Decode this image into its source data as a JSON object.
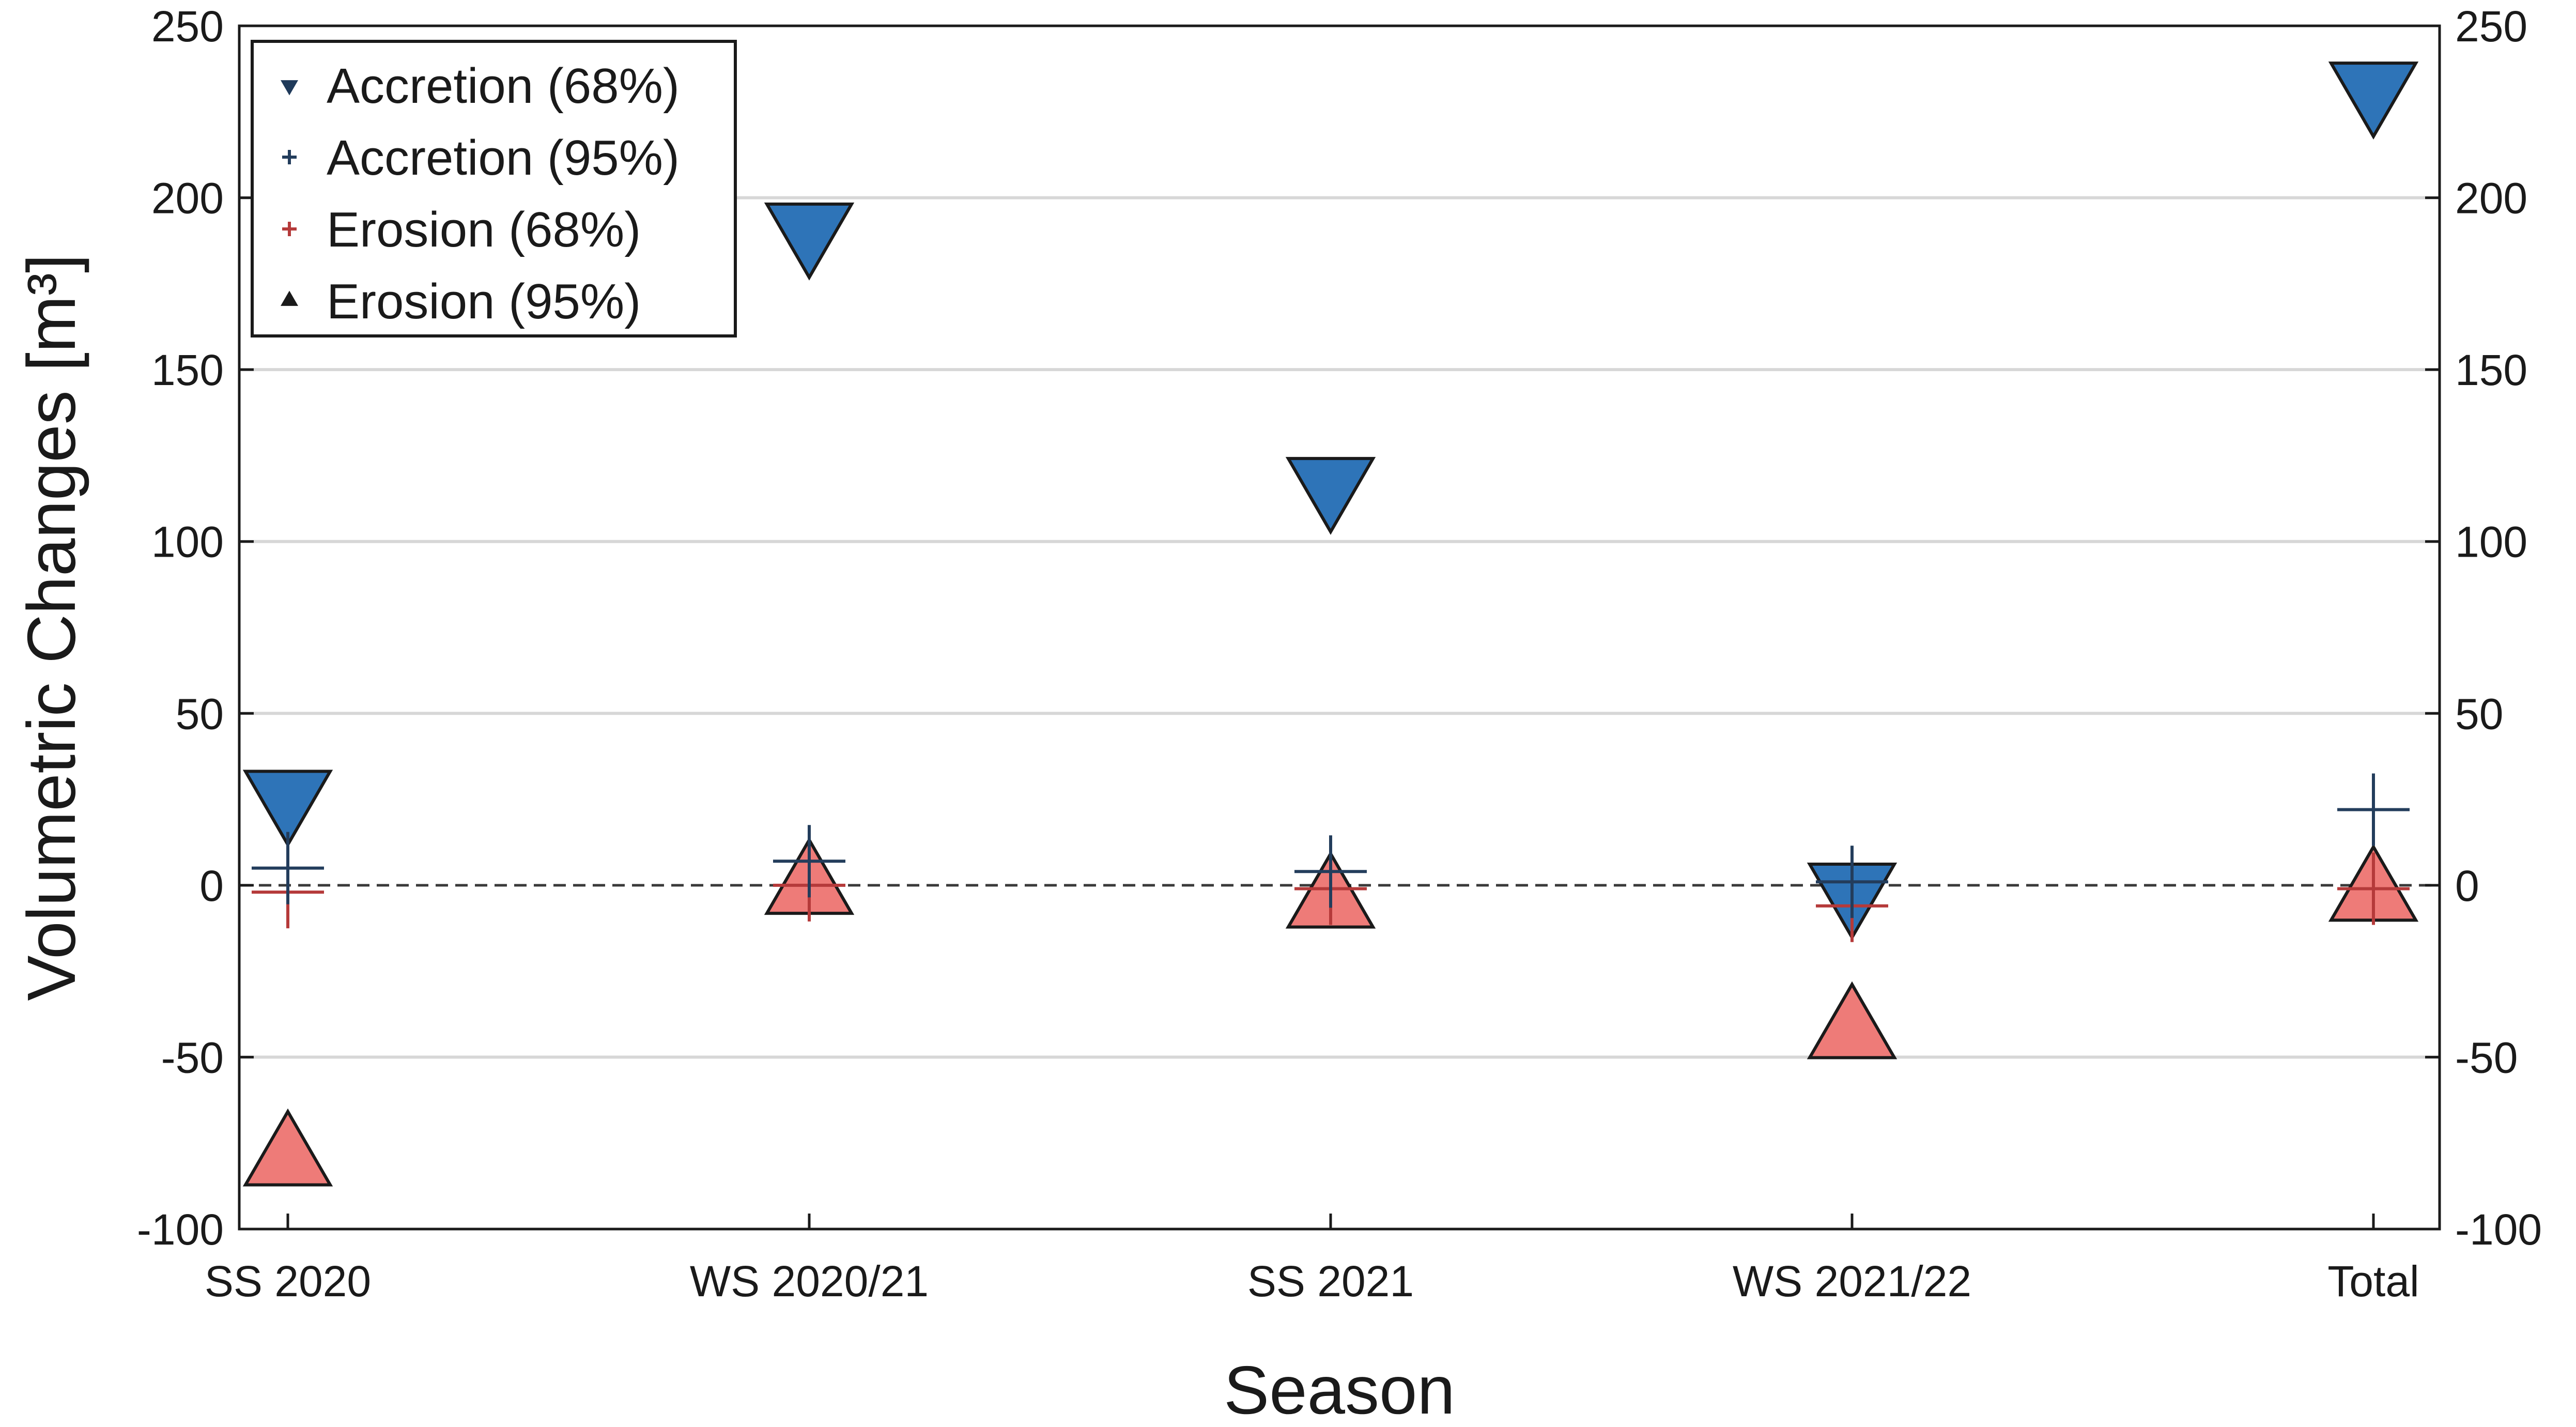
{
  "chart_data": {
    "type": "scatter",
    "title": "",
    "xlabel": "Season",
    "ylabel": "Volumetric Changes [m³]",
    "ylim": [
      -100,
      250
    ],
    "yticks": [
      -100,
      -50,
      0,
      50,
      100,
      150,
      200,
      250
    ],
    "ytick_labels": [
      "-100",
      "-50",
      "0",
      "50",
      "100",
      "150",
      "200",
      "250"
    ],
    "grid": true,
    "zero_line": "dashed",
    "legend_position": "top-left",
    "categories": [
      "SS 2020",
      "WS 2020/21",
      "SS 2021",
      "WS 2021/22",
      "Total"
    ],
    "series": [
      {
        "name": "Accretion (68%)",
        "marker": "triangle-down",
        "color": "#2e74b8",
        "legend_color": "#1f3a5a",
        "values": [
          26,
          191,
          117,
          -1,
          232
        ]
      },
      {
        "name": "Accretion (95%)",
        "marker": "plus",
        "color": "#233d5c",
        "legend_color": "#233d5c",
        "values": [
          5,
          7,
          4,
          1,
          22
        ]
      },
      {
        "name": "Erosion (68%)",
        "marker": "plus",
        "color": "#b53a3a",
        "legend_color": "#b53a3a",
        "values": [
          -2,
          0,
          -1,
          -6,
          -1
        ]
      },
      {
        "name": "Erosion (95%)",
        "marker": "triangle-up",
        "color": "#ee7b78",
        "legend_color": "#1a1a1a",
        "values": [
          -80,
          -1,
          -5,
          -43,
          -3
        ]
      }
    ]
  }
}
